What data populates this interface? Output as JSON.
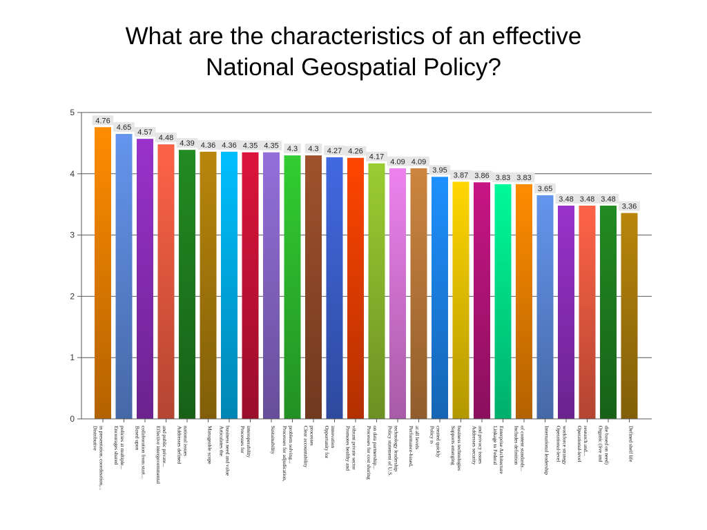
{
  "title": {
    "line1": "What are the characteristics of an effective",
    "line2": "National Geospatial Policy?"
  },
  "chart_data": {
    "type": "bar",
    "title": "What are the characteristics of an effective National Geospatial Policy?",
    "xlabel": "",
    "ylabel": "",
    "ylim": [
      0,
      5
    ],
    "yticks": [
      "0",
      "1",
      "2",
      "3",
      "4",
      "5"
    ],
    "grid": true,
    "legend": "none",
    "categories": [
      [
        "Distributive",
        "in presentation, coordination,..."
      ],
      [
        "Encourages shared",
        "policies at multiple..."
      ],
      [
        "Based upon",
        "collaboration from start..."
      ],
      [
        "Effective intergovernmental",
        "and public private..."
      ],
      [
        "Addresses defined",
        "national issues"
      ],
      [
        "Manageable scope"
      ],
      [
        "Articulates the",
        "business need and value"
      ],
      [
        "Processes for",
        "interoperability"
      ],
      [
        "Sustainability"
      ],
      [
        "Processes for adjudication,",
        "problem solving..."
      ],
      [
        "Clear accountability",
        "processes"
      ],
      [
        "Opportunity for",
        "innovation"
      ],
      [
        "Promotes healthy and",
        "vibrant private sector"
      ],
      [
        "Processes for cost sharing",
        "on data partnership..."
      ],
      [
        "Policy statement of U.S.",
        "technology leadership"
      ],
      [
        "Performance-based,",
        "at all levels"
      ],
      [
        "Policy is",
        "created quickly"
      ],
      [
        "Supports emerging",
        "business technologies"
      ],
      [
        "Addresses security",
        "and privacy issues"
      ],
      [
        "Linkage to Federal",
        "Enterprise Architecture"
      ],
      [
        "Includes definition",
        "of content standards..."
      ],
      [
        "International leadership"
      ],
      [
        "Operational-level",
        "workforce strategy"
      ],
      [
        "Operational-level",
        "research and..."
      ],
      [
        "Organic (live and",
        "die based on need)"
      ],
      [
        "Defined shelf life"
      ]
    ],
    "values": [
      4.76,
      4.65,
      4.57,
      4.48,
      4.39,
      4.36,
      4.36,
      4.35,
      4.35,
      4.3,
      4.3,
      4.27,
      4.26,
      4.17,
      4.09,
      4.09,
      3.95,
      3.87,
      3.86,
      3.83,
      3.83,
      3.65,
      3.48,
      3.48,
      3.48,
      3.36
    ],
    "value_labels": [
      "4.76",
      "4.65",
      "4.57",
      "4.48",
      "4.39",
      "4.36",
      "4.36",
      "4.35",
      "4.35",
      "4.3",
      "4.3",
      "4.27",
      "4.26",
      "4.17",
      "4.09",
      "4.09",
      "3.95",
      "3.87",
      "3.86",
      "3.83",
      "3.83",
      "3.65",
      "3.48",
      "3.48",
      "3.48",
      "3.36"
    ],
    "colors": [
      "#FF8C00",
      "#6495ED",
      "#9932CC",
      "#FF6347",
      "#228B22",
      "#B8860B",
      "#00BFFF",
      "#DC143C",
      "#9370DB",
      "#32CD32",
      "#A0522D",
      "#4169E1",
      "#FF4500",
      "#9ACD32",
      "#EE82EE",
      "#CD853F",
      "#1E90FF",
      "#FFD700",
      "#C71585",
      "#00FA9A",
      "#FF8C00",
      "#6495ED",
      "#9932CC",
      "#FF6347",
      "#228B22",
      "#B8860B"
    ]
  }
}
